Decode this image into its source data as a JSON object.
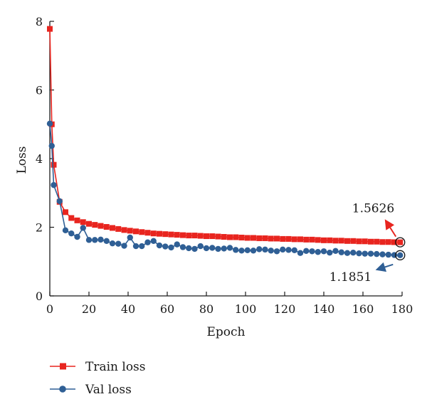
{
  "chart_data": {
    "type": "line",
    "xlabel": "Epoch",
    "ylabel": "Loss",
    "xlim": [
      0,
      180
    ],
    "ylim": [
      0,
      8
    ],
    "xticks": [
      0,
      20,
      40,
      60,
      80,
      100,
      120,
      140,
      160,
      180
    ],
    "yticks": [
      0,
      2,
      4,
      6,
      8
    ],
    "grid": false,
    "legend_position": "bottom-left",
    "series": [
      {
        "name": "Train loss",
        "color": "#e8251f",
        "marker": "square",
        "x": [
          0,
          1,
          2,
          5,
          8,
          11,
          14,
          17,
          20,
          23,
          26,
          29,
          32,
          35,
          38,
          41,
          44,
          47,
          50,
          53,
          56,
          59,
          62,
          65,
          68,
          71,
          74,
          77,
          80,
          83,
          86,
          89,
          92,
          95,
          98,
          101,
          104,
          107,
          110,
          113,
          116,
          119,
          122,
          125,
          128,
          131,
          134,
          137,
          140,
          143,
          146,
          149,
          152,
          155,
          158,
          161,
          164,
          167,
          170,
          173,
          176,
          179
        ],
        "values": [
          7.78,
          5.0,
          3.82,
          2.74,
          2.44,
          2.27,
          2.2,
          2.15,
          2.1,
          2.07,
          2.04,
          2.01,
          1.98,
          1.95,
          1.92,
          1.9,
          1.88,
          1.86,
          1.84,
          1.82,
          1.81,
          1.8,
          1.79,
          1.78,
          1.77,
          1.76,
          1.76,
          1.75,
          1.74,
          1.74,
          1.73,
          1.72,
          1.71,
          1.71,
          1.7,
          1.69,
          1.69,
          1.68,
          1.68,
          1.67,
          1.67,
          1.66,
          1.66,
          1.65,
          1.65,
          1.64,
          1.64,
          1.63,
          1.62,
          1.62,
          1.61,
          1.61,
          1.6,
          1.6,
          1.59,
          1.59,
          1.58,
          1.58,
          1.57,
          1.57,
          1.565,
          1.5626
        ]
      },
      {
        "name": "Val loss",
        "color": "#2f5f95",
        "marker": "circle",
        "x": [
          0,
          1,
          2,
          5,
          8,
          11,
          14,
          17,
          20,
          23,
          26,
          29,
          32,
          35,
          38,
          41,
          44,
          47,
          50,
          53,
          56,
          59,
          62,
          65,
          68,
          71,
          74,
          77,
          80,
          83,
          86,
          89,
          92,
          95,
          98,
          101,
          104,
          107,
          110,
          113,
          116,
          119,
          122,
          125,
          128,
          131,
          134,
          137,
          140,
          143,
          146,
          149,
          152,
          155,
          158,
          161,
          164,
          167,
          170,
          173,
          176,
          179
        ],
        "values": [
          5.02,
          4.37,
          3.23,
          2.76,
          1.91,
          1.82,
          1.72,
          1.98,
          1.63,
          1.63,
          1.64,
          1.6,
          1.53,
          1.52,
          1.46,
          1.7,
          1.45,
          1.45,
          1.56,
          1.6,
          1.47,
          1.44,
          1.41,
          1.5,
          1.42,
          1.39,
          1.37,
          1.45,
          1.39,
          1.4,
          1.37,
          1.38,
          1.4,
          1.34,
          1.32,
          1.33,
          1.32,
          1.36,
          1.35,
          1.32,
          1.3,
          1.35,
          1.34,
          1.33,
          1.25,
          1.31,
          1.3,
          1.28,
          1.3,
          1.26,
          1.31,
          1.27,
          1.25,
          1.26,
          1.24,
          1.23,
          1.23,
          1.22,
          1.21,
          1.2,
          1.19,
          1.1851
        ]
      }
    ],
    "annotations": [
      {
        "text": "1.5626",
        "series": "Train loss",
        "x": 179,
        "y": 1.5626,
        "color": "#e8251f"
      },
      {
        "text": "1.1851",
        "series": "Val loss",
        "x": 179,
        "y": 1.1851,
        "color": "#2f5f95"
      }
    ]
  }
}
